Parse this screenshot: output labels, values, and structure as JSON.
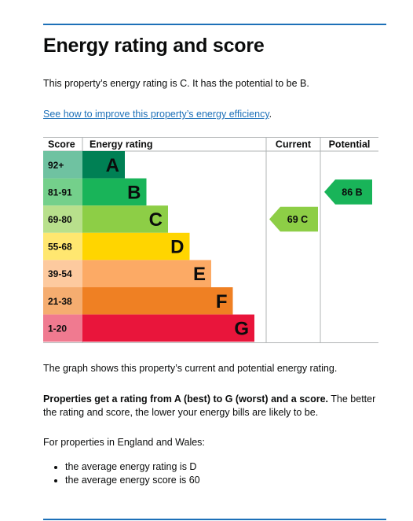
{
  "title": "Energy rating and score",
  "summary": "This property’s energy rating is C. It has the potential to be B.",
  "improve_link": "See how to improve this property’s energy efficiency",
  "improve_suffix": ".",
  "graph_caption": "The graph shows this property’s current and potential energy rating.",
  "rating_note_bold": "Properties get a rating from A (best) to G (worst) and a score.",
  "rating_note_rest": " The better the rating and score, the lower your energy bills are likely to be.",
  "england_wales_intro": "For properties in England and Wales:",
  "averages": [
    "the average energy rating is D",
    "the average energy score is 60"
  ],
  "chart_data": {
    "type": "bar",
    "headers": {
      "score": "Score",
      "rating": "Energy rating",
      "current": "Current",
      "potential": "Potential"
    },
    "bands": [
      {
        "range": "92+",
        "letter": "A",
        "color": "#008054",
        "light": "#6fc2a1",
        "dark_text": false
      },
      {
        "range": "81-91",
        "letter": "B",
        "color": "#19b459",
        "light": "#74d08b",
        "dark_text": false
      },
      {
        "range": "69-80",
        "letter": "C",
        "color": "#8dce46",
        "light": "#b8e08c",
        "dark_text": false
      },
      {
        "range": "55-68",
        "letter": "D",
        "color": "#ffd500",
        "light": "#ffe770",
        "dark_text": true
      },
      {
        "range": "39-54",
        "letter": "E",
        "color": "#fcaa65",
        "light": "#fdca9f",
        "dark_text": true
      },
      {
        "range": "21-38",
        "letter": "F",
        "color": "#ef8023",
        "light": "#f5ad70",
        "dark_text": true
      },
      {
        "range": "1-20",
        "letter": "G",
        "color": "#e9153b",
        "light": "#f07a90",
        "dark_text": true
      }
    ],
    "current": {
      "score": 69,
      "letter": "C",
      "label": "69  C",
      "color": "#8dce46"
    },
    "potential": {
      "score": 86,
      "letter": "B",
      "label": "86  B",
      "color": "#19b459"
    }
  }
}
